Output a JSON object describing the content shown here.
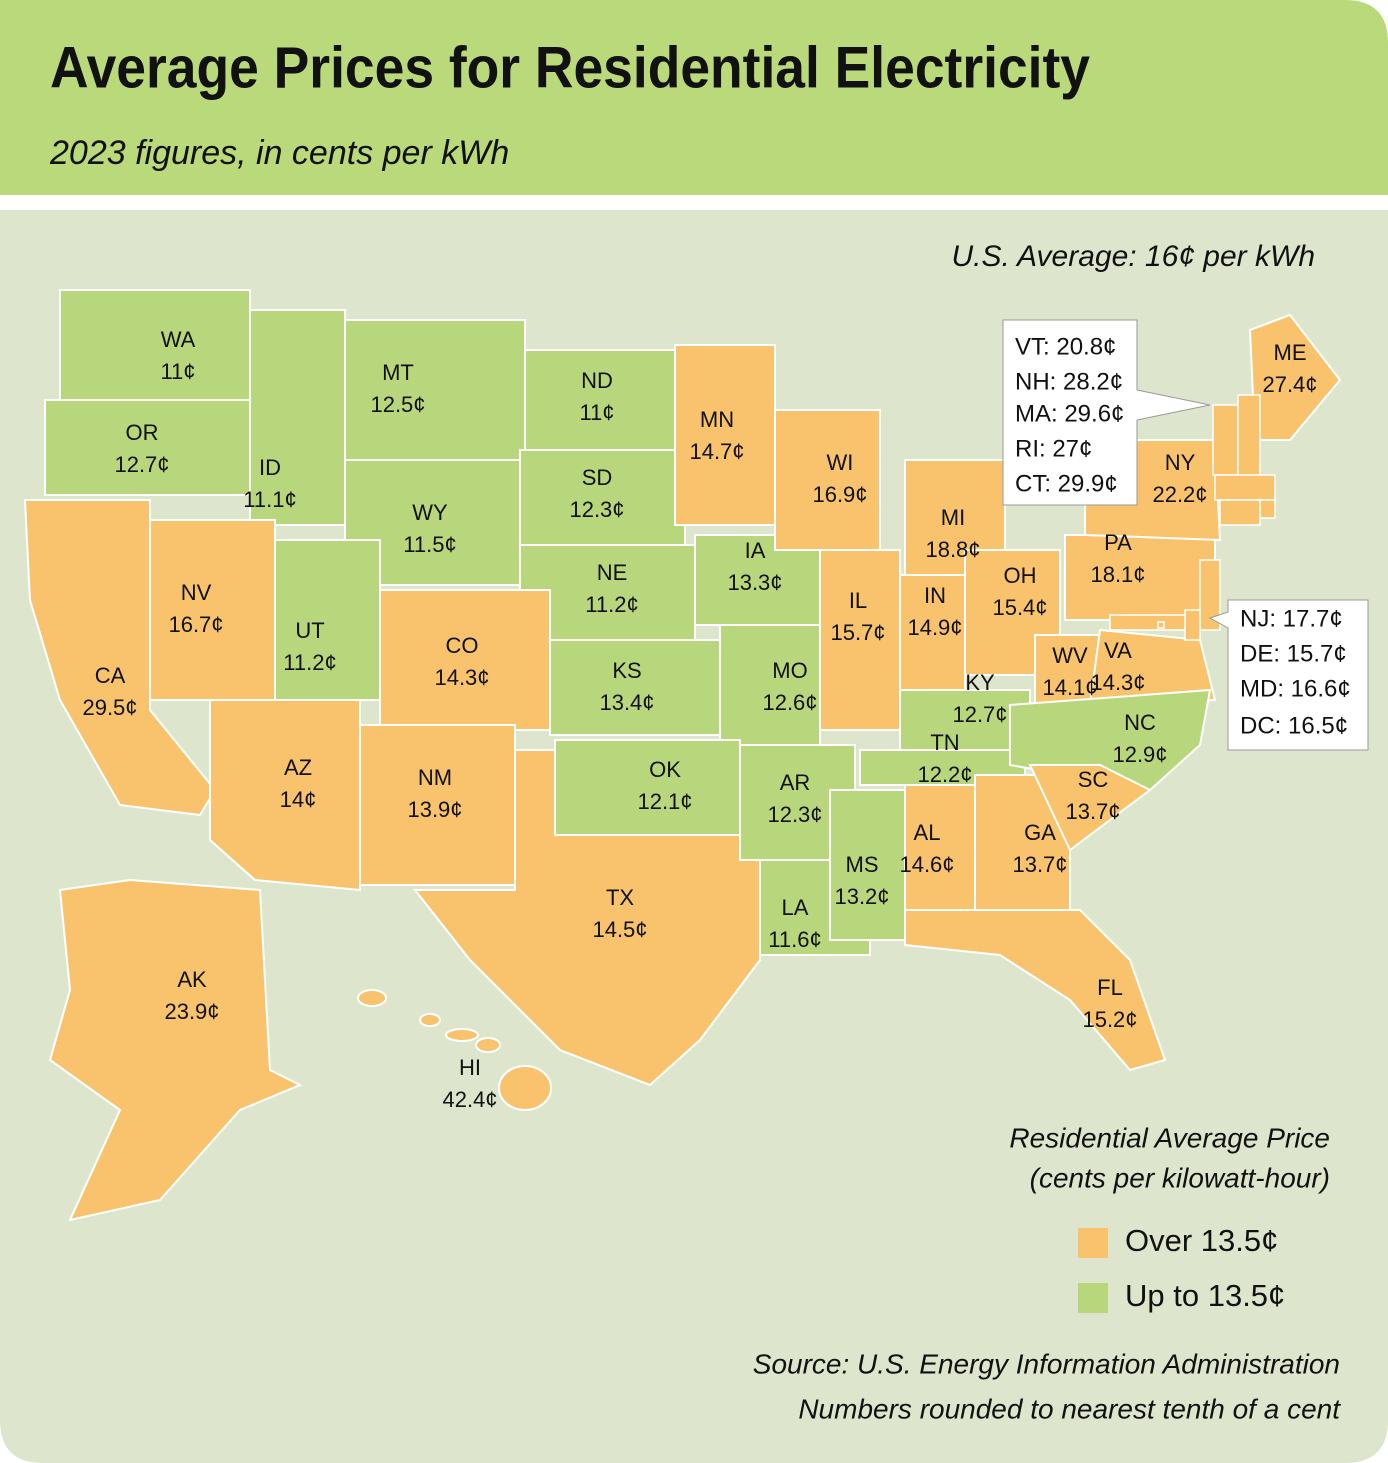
{
  "header": {
    "title": "Average Prices for Residential Electricity",
    "subtitle": "2023 figures, in cents per kWh"
  },
  "map": {
    "note": "U.S. Average: 16¢ per kWh",
    "states": [
      {
        "abbr": "WA",
        "price": "11¢",
        "color": "#b8d77c"
      },
      {
        "abbr": "OR",
        "price": "12.7¢",
        "color": "#b8d77c"
      },
      {
        "abbr": "ID",
        "price": "11.1¢",
        "color": "#b8d77c"
      },
      {
        "abbr": "MT",
        "price": "12.5¢",
        "color": "#b8d77c"
      },
      {
        "abbr": "ND",
        "price": "11¢",
        "color": "#b8d77c"
      },
      {
        "abbr": "SD",
        "price": "12.3¢",
        "color": "#b8d77c"
      },
      {
        "abbr": "MN",
        "price": "14.7¢",
        "color": "#f9c26c"
      },
      {
        "abbr": "WY",
        "price": "11.5¢",
        "color": "#b8d77c"
      },
      {
        "abbr": "NE",
        "price": "11.2¢",
        "color": "#b8d77c"
      },
      {
        "abbr": "IA",
        "price": "13.3¢",
        "color": "#b8d77c"
      },
      {
        "abbr": "WI",
        "price": "16.9¢",
        "color": "#f9c26c"
      },
      {
        "abbr": "MI",
        "price": "18.8¢",
        "color": "#f9c26c"
      },
      {
        "abbr": "CA",
        "price": "29.5¢",
        "color": "#f9c26c"
      },
      {
        "abbr": "NV",
        "price": "16.7¢",
        "color": "#f9c26c"
      },
      {
        "abbr": "UT",
        "price": "11.2¢",
        "color": "#b8d77c"
      },
      {
        "abbr": "CO",
        "price": "14.3¢",
        "color": "#f9c26c"
      },
      {
        "abbr": "KS",
        "price": "13.4¢",
        "color": "#b8d77c"
      },
      {
        "abbr": "MO",
        "price": "12.6¢",
        "color": "#b8d77c"
      },
      {
        "abbr": "IL",
        "price": "15.7¢",
        "color": "#f9c26c"
      },
      {
        "abbr": "IN",
        "price": "14.9¢",
        "color": "#f9c26c"
      },
      {
        "abbr": "OH",
        "price": "15.4¢",
        "color": "#f9c26c"
      },
      {
        "abbr": "PA",
        "price": "18.1¢",
        "color": "#f9c26c"
      },
      {
        "abbr": "NY",
        "price": "22.2¢",
        "color": "#f9c26c"
      },
      {
        "abbr": "ME",
        "price": "27.4¢",
        "color": "#f9c26c"
      },
      {
        "abbr": "WV",
        "price": "14.1¢",
        "color": "#f9c26c"
      },
      {
        "abbr": "VA",
        "price": "14.3¢",
        "color": "#f9c26c"
      },
      {
        "abbr": "KY",
        "price": "12.7¢",
        "color": "#b8d77c"
      },
      {
        "abbr": "TN",
        "price": "12.2¢",
        "color": "#b8d77c"
      },
      {
        "abbr": "NC",
        "price": "12.9¢",
        "color": "#b8d77c"
      },
      {
        "abbr": "AZ",
        "price": "14¢",
        "color": "#f9c26c"
      },
      {
        "abbr": "NM",
        "price": "13.9¢",
        "color": "#f9c26c"
      },
      {
        "abbr": "OK",
        "price": "12.1¢",
        "color": "#b8d77c"
      },
      {
        "abbr": "TX",
        "price": "14.5¢",
        "color": "#f9c26c"
      },
      {
        "abbr": "AR",
        "price": "12.3¢",
        "color": "#b8d77c"
      },
      {
        "abbr": "LA",
        "price": "11.6¢",
        "color": "#b8d77c"
      },
      {
        "abbr": "MS",
        "price": "13.2¢",
        "color": "#b8d77c"
      },
      {
        "abbr": "AL",
        "price": "14.6¢",
        "color": "#f9c26c"
      },
      {
        "abbr": "GA",
        "price": "13.7¢",
        "color": "#f9c26c"
      },
      {
        "abbr": "SC",
        "price": "13.7¢",
        "color": "#f9c26c"
      },
      {
        "abbr": "FL",
        "price": "15.2¢",
        "color": "#f9c26c"
      },
      {
        "abbr": "AK",
        "price": "23.9¢",
        "color": "#f9c26c"
      },
      {
        "abbr": "HI",
        "price": "42.4¢",
        "color": "#f9c26c"
      }
    ],
    "callouts": [
      [
        {
          "text": "VT: 20.8¢",
          "color": "#f9c26c"
        },
        {
          "text": "NH: 28.2¢",
          "color": "#f9c26c"
        },
        {
          "text": "MA: 29.6¢",
          "color": "#f9c26c"
        },
        {
          "text": "RI: 27¢",
          "color": "#f9c26c"
        },
        {
          "text": "CT: 29.9¢",
          "color": "#f9c26c"
        }
      ],
      [
        {
          "text": "NJ: 17.7¢",
          "color": "#f9c26c"
        },
        {
          "text": "DE: 15.7¢",
          "color": "#f9c26c"
        },
        {
          "text": "MD: 16.6¢",
          "color": "#f9c26c"
        },
        {
          "text": "DC: 16.5¢",
          "color": "#f9c26c"
        }
      ]
    ]
  },
  "legend": {
    "title": [
      "Residential Average Price",
      "(cents per kilowatt-hour)"
    ],
    "items": [
      {
        "label": "Over 13.5¢",
        "color": "#f9c26c"
      },
      {
        "label": "Up to 13.5¢",
        "color": "#b8d77c"
      }
    ]
  },
  "footer": [
    "Source: U.S. Energy Information Administration",
    "Numbers rounded to nearest tenth of a cent"
  ]
}
